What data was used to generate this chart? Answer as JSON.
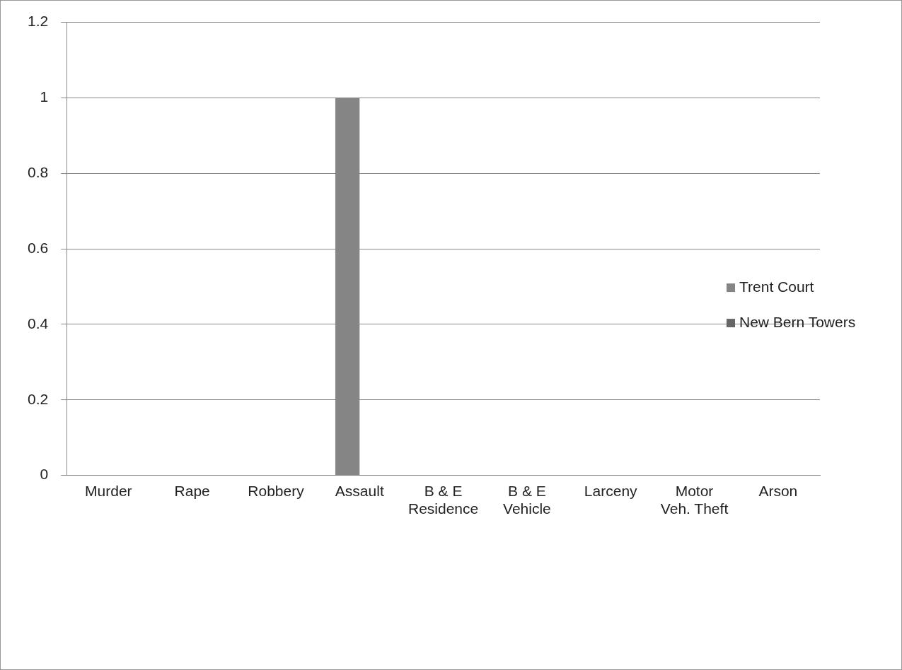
{
  "chart_data": {
    "type": "bar",
    "categories": [
      "Murder",
      "Rape",
      "Robbery",
      "Assault",
      "B & E\nResidence",
      "B & E\nVehicle",
      "Larceny",
      "Motor\nVeh. Theft",
      "Arson"
    ],
    "series": [
      {
        "name": "Trent Court",
        "color": "#858585",
        "values": [
          0,
          0,
          0,
          1,
          0,
          0,
          0,
          0,
          0
        ]
      },
      {
        "name": "New Bern Towers",
        "color": "#666666",
        "values": [
          0,
          0,
          0,
          0,
          0,
          0,
          0,
          0,
          0
        ]
      }
    ],
    "ylim": [
      0,
      1.2
    ],
    "yticks": [
      0,
      0.2,
      0.4,
      0.6,
      0.8,
      1,
      1.2
    ],
    "grid": "y",
    "legend": "right"
  }
}
